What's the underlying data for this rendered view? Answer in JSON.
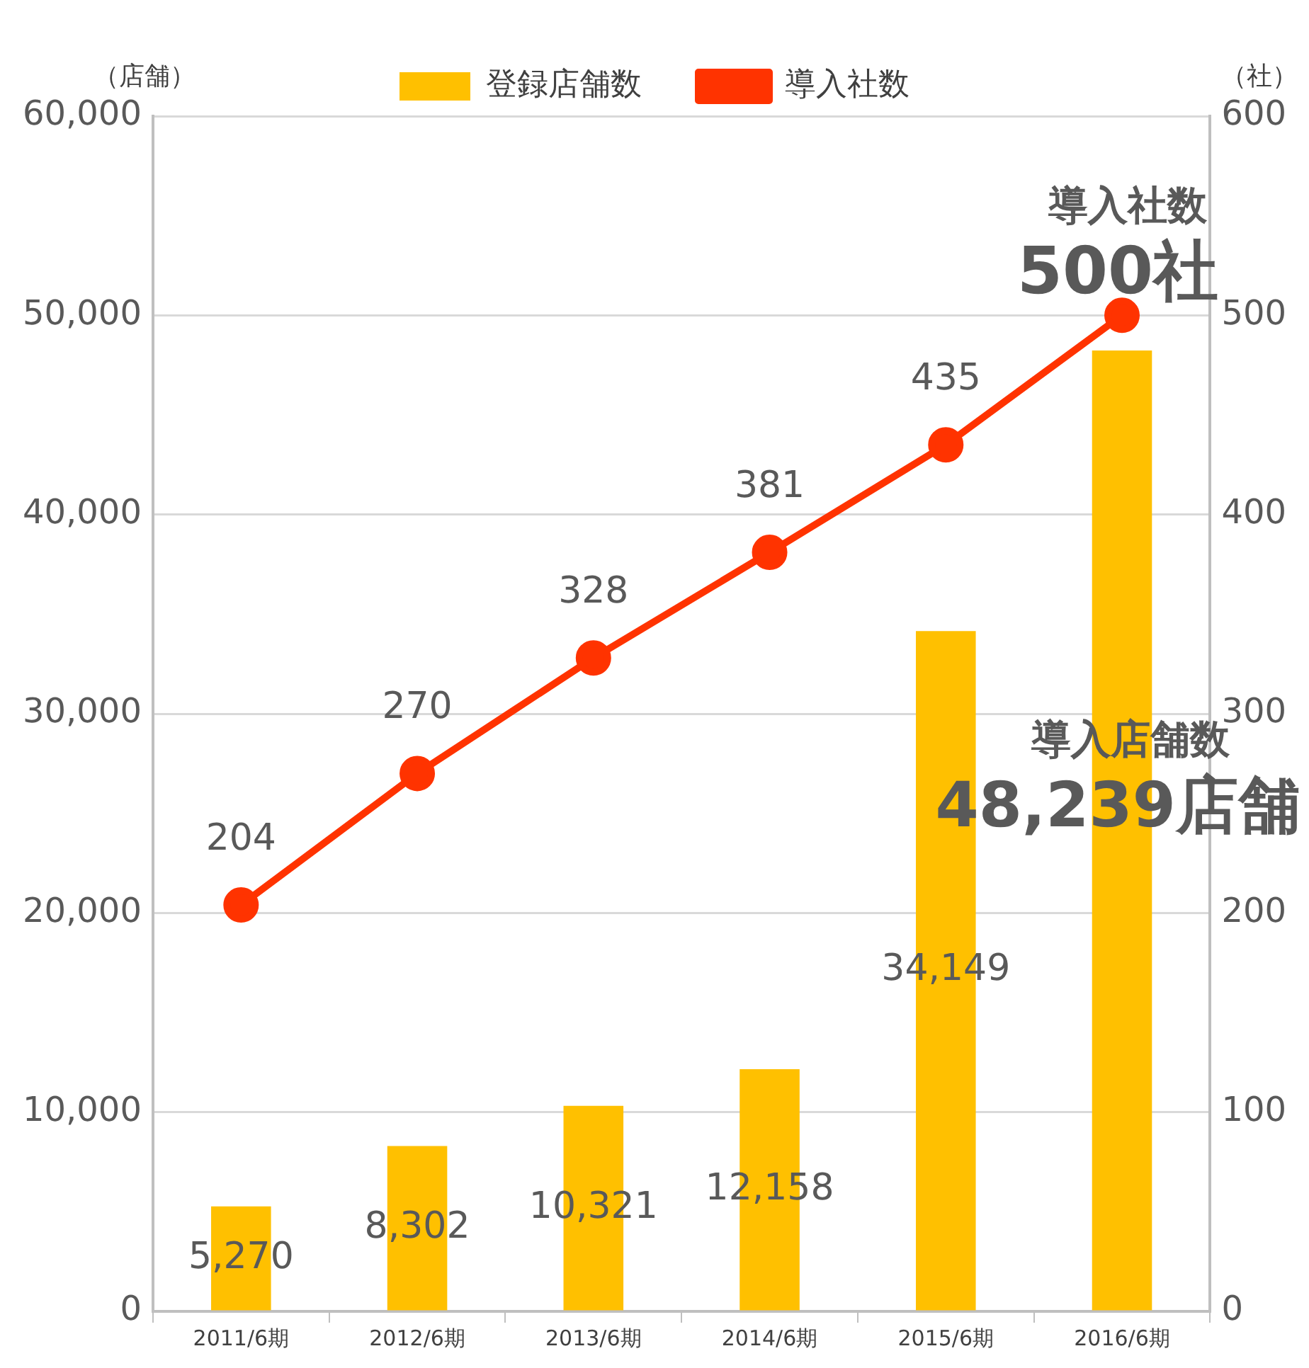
{
  "chart_data": {
    "type": "bar",
    "categories": [
      "2011/6期",
      "2012/6期",
      "2013/6期",
      "2014/6期",
      "2015/6期",
      "2016/6期"
    ],
    "ylabel": "（店舗）",
    "y2label": "（社）",
    "series": [
      {
        "name": "登録店舗数",
        "color": "#ffc000",
        "values": [
          5270,
          8302,
          10321,
          12158,
          34149,
          48239
        ],
        "value_labels": [
          "5,270",
          "8,302",
          "10,321",
          "12,158",
          "34,149",
          null
        ]
      },
      {
        "name": "導入社数",
        "type": "line",
        "axis": "y2",
        "color": "#ff3300",
        "values": [
          204,
          270,
          328,
          381,
          435,
          500
        ],
        "value_labels": [
          "204",
          "270",
          "328",
          "381",
          "435",
          null
        ]
      }
    ],
    "ylim": [
      0,
      60000
    ],
    "yticks": [
      0,
      {
        "value": 10000,
        "label": "10,000"
      },
      {
        "value": 20000,
        "label": "20,000"
      },
      {
        "value": 30000,
        "label": "30,000"
      },
      {
        "value": 40000,
        "label": "40,000"
      },
      {
        "value": 50000,
        "label": "50,000"
      },
      {
        "value": 60000,
        "label": "60,000"
      }
    ],
    "y2lim": [
      0,
      600
    ],
    "y2ticks": [
      0,
      100,
      200,
      300,
      400,
      500,
      600
    ],
    "annotations": [
      "導入社数",
      "500社",
      "導入店舗数",
      "48,239店舗"
    ],
    "grid": "y",
    "legend": "top",
    "marker": "circle",
    "line_style": "solid"
  }
}
